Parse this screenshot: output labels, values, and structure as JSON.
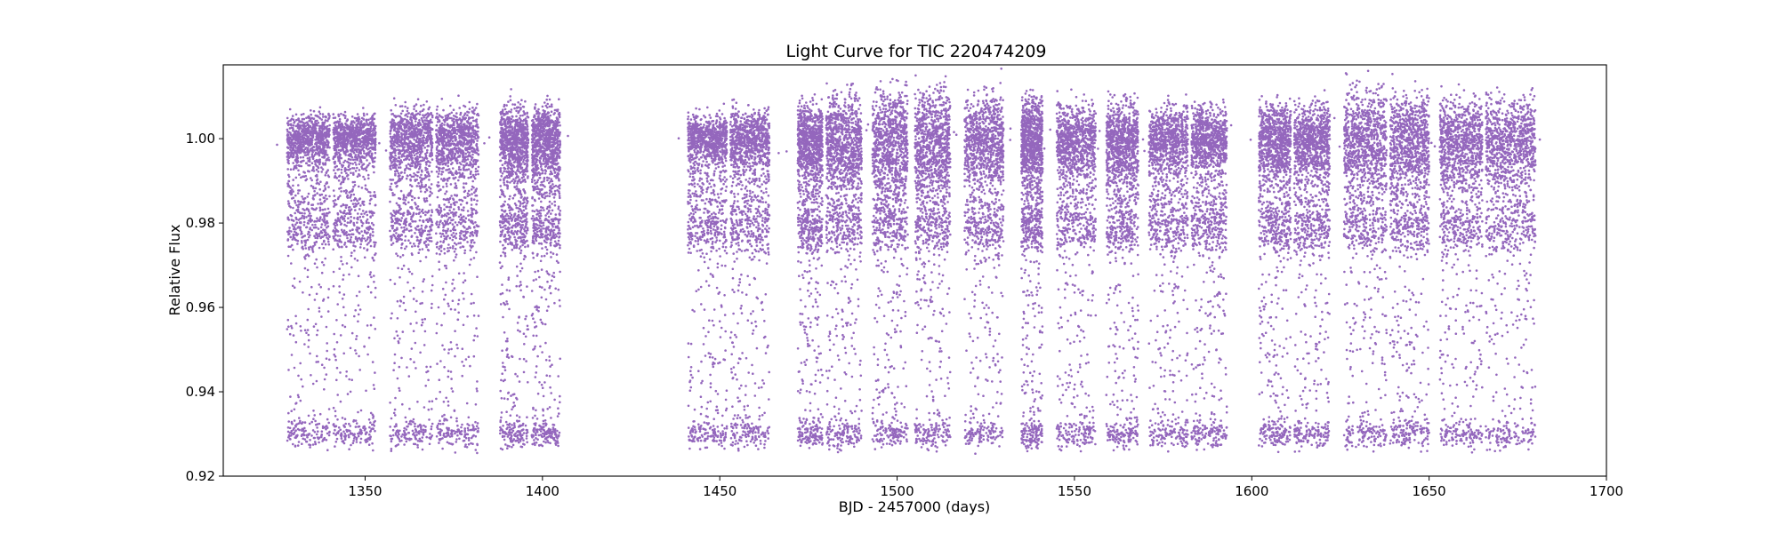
{
  "chart_data": {
    "type": "scatter",
    "title": "Light Curve for TIC 220474209",
    "xlabel": "BJD - 2457000 (days)",
    "ylabel": "Relative Flux",
    "xlim": [
      1310,
      1700
    ],
    "ylim": [
      0.92,
      1.0175
    ],
    "xticks": [
      "1350",
      "1400",
      "1450",
      "1500",
      "1550",
      "1600",
      "1650",
      "1700"
    ],
    "yticks": [
      "0.92",
      "0.94",
      "0.96",
      "0.98",
      "1.00"
    ],
    "grid": false,
    "legend": "none",
    "marker_color": "#9467bd",
    "baseline_flux": 1.0,
    "transit_floor_flux": 0.93,
    "plateau_flux": 0.978,
    "segments": [
      {
        "start": 1328.0,
        "end": 1340.0,
        "upper": 1.006
      },
      {
        "start": 1341.0,
        "end": 1353.0,
        "upper": 1.006
      },
      {
        "start": 1357.0,
        "end": 1369.0,
        "upper": 1.008
      },
      {
        "start": 1370.0,
        "end": 1382.0,
        "upper": 1.008
      },
      {
        "start": 1388.0,
        "end": 1396.0,
        "upper": 1.009
      },
      {
        "start": 1397.0,
        "end": 1405.0,
        "upper": 1.008
      },
      {
        "start": 1441.0,
        "end": 1452.0,
        "upper": 1.006
      },
      {
        "start": 1453.0,
        "end": 1464.0,
        "upper": 1.007
      },
      {
        "start": 1472.0,
        "end": 1479.0,
        "upper": 1.009
      },
      {
        "start": 1480.0,
        "end": 1490.0,
        "upper": 1.011
      },
      {
        "start": 1493.0,
        "end": 1503.0,
        "upper": 1.012
      },
      {
        "start": 1505.0,
        "end": 1515.0,
        "upper": 1.013
      },
      {
        "start": 1519.0,
        "end": 1530.0,
        "upper": 1.011
      },
      {
        "start": 1535.0,
        "end": 1541.0,
        "upper": 1.01
      },
      {
        "start": 1545.0,
        "end": 1556.0,
        "upper": 1.009
      },
      {
        "start": 1559.0,
        "end": 1568.0,
        "upper": 1.009
      },
      {
        "start": 1571.0,
        "end": 1582.0,
        "upper": 1.008
      },
      {
        "start": 1583.0,
        "end": 1593.0,
        "upper": 1.008
      },
      {
        "start": 1602.0,
        "end": 1611.0,
        "upper": 1.009
      },
      {
        "start": 1612.0,
        "end": 1622.0,
        "upper": 1.009
      },
      {
        "start": 1626.0,
        "end": 1638.0,
        "upper": 1.012
      },
      {
        "start": 1639.0,
        "end": 1650.0,
        "upper": 1.012
      },
      {
        "start": 1653.0,
        "end": 1665.0,
        "upper": 1.01
      },
      {
        "start": 1666.0,
        "end": 1680.0,
        "upper": 1.01
      }
    ]
  }
}
